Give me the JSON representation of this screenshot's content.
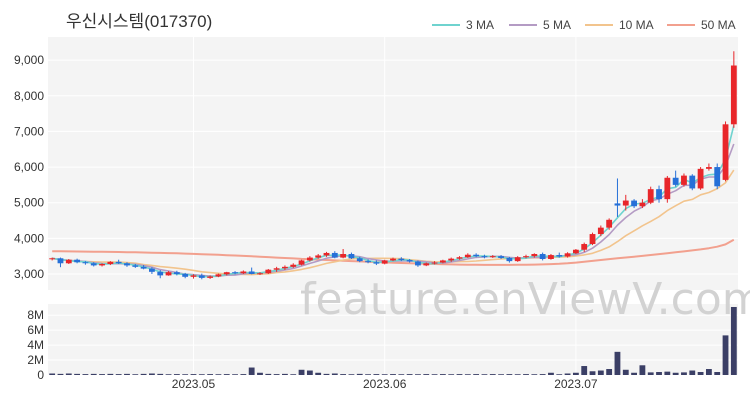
{
  "header": {
    "title": "우신시스템(017370)"
  },
  "watermark": "feature.enViewV.com",
  "colors": {
    "up": "#e8262a",
    "down": "#2670d8",
    "volume": "#3b3f66",
    "ma3": "#6fd3cf",
    "ma5": "#b49bc4",
    "ma10": "#f2c48d",
    "ma50": "#f2a08e",
    "panel": "#f4f4f4",
    "grid": "#ffffff"
  },
  "chart_data": [
    {
      "type": "candlestick",
      "title": "우신시스템(017370)",
      "y_ticks": [
        3000,
        4000,
        5000,
        6000,
        7000,
        8000,
        9000
      ],
      "y_tick_labels": [
        "3,000",
        "4,000",
        "5,000",
        "6,000",
        "7,000",
        "8,000",
        "9,000"
      ],
      "ylim": [
        2550,
        9650
      ],
      "x_tick_labels": [
        "2023.05",
        "2023.06",
        "2023.07"
      ],
      "legend": {
        "position": "top-right",
        "entries": [
          "3 MA",
          "5 MA",
          "10 MA",
          "50 MA"
        ]
      },
      "candles": [
        [
          3420,
          3460,
          3380,
          3440
        ],
        [
          3440,
          3460,
          3190,
          3300
        ],
        [
          3300,
          3420,
          3280,
          3400
        ],
        [
          3400,
          3430,
          3300,
          3330
        ],
        [
          3330,
          3360,
          3260,
          3300
        ],
        [
          3300,
          3330,
          3210,
          3240
        ],
        [
          3240,
          3300,
          3210,
          3280
        ],
        [
          3280,
          3360,
          3250,
          3340
        ],
        [
          3340,
          3400,
          3280,
          3300
        ],
        [
          3300,
          3330,
          3200,
          3240
        ],
        [
          3240,
          3280,
          3170,
          3200
        ],
        [
          3200,
          3250,
          3130,
          3150
        ],
        [
          3150,
          3190,
          3000,
          3060
        ],
        [
          3060,
          3110,
          2880,
          2960
        ],
        [
          2960,
          3080,
          2950,
          3050
        ],
        [
          3050,
          3090,
          2960,
          3000
        ],
        [
          3000,
          3030,
          2880,
          2920
        ],
        [
          2920,
          2990,
          2870,
          2960
        ],
        [
          2960,
          3010,
          2850,
          2890
        ],
        [
          2890,
          2960,
          2860,
          2930
        ],
        [
          2930,
          3010,
          2910,
          2990
        ],
        [
          2990,
          3060,
          2960,
          3050
        ],
        [
          3050,
          3080,
          2990,
          3020
        ],
        [
          3020,
          3100,
          3000,
          3070
        ],
        [
          3070,
          3180,
          2990,
          3000
        ],
        [
          3000,
          3050,
          2970,
          3020
        ],
        [
          3020,
          3140,
          3000,
          3120
        ],
        [
          3120,
          3200,
          3060,
          3160
        ],
        [
          3160,
          3240,
          3110,
          3200
        ],
        [
          3200,
          3300,
          3170,
          3260
        ],
        [
          3260,
          3400,
          3240,
          3380
        ],
        [
          3380,
          3500,
          3350,
          3460
        ],
        [
          3460,
          3560,
          3430,
          3520
        ],
        [
          3520,
          3620,
          3480,
          3590
        ],
        [
          3590,
          3640,
          3440,
          3460
        ],
        [
          3460,
          3700,
          3440,
          3560
        ],
        [
          3560,
          3600,
          3420,
          3440
        ],
        [
          3440,
          3480,
          3330,
          3360
        ],
        [
          3360,
          3410,
          3300,
          3330
        ],
        [
          3330,
          3380,
          3250,
          3290
        ],
        [
          3290,
          3400,
          3270,
          3380
        ],
        [
          3380,
          3460,
          3360,
          3430
        ],
        [
          3430,
          3470,
          3360,
          3390
        ],
        [
          3390,
          3420,
          3320,
          3350
        ],
        [
          3350,
          3380,
          3200,
          3240
        ],
        [
          3240,
          3320,
          3220,
          3300
        ],
        [
          3300,
          3360,
          3270,
          3320
        ],
        [
          3320,
          3400,
          3300,
          3380
        ],
        [
          3380,
          3460,
          3340,
          3430
        ],
        [
          3430,
          3500,
          3400,
          3470
        ],
        [
          3470,
          3580,
          3450,
          3540
        ],
        [
          3540,
          3580,
          3470,
          3500
        ],
        [
          3500,
          3540,
          3440,
          3470
        ],
        [
          3470,
          3530,
          3450,
          3500
        ],
        [
          3500,
          3530,
          3420,
          3450
        ],
        [
          3450,
          3480,
          3320,
          3360
        ],
        [
          3360,
          3500,
          3340,
          3470
        ],
        [
          3470,
          3540,
          3440,
          3500
        ],
        [
          3500,
          3580,
          3460,
          3560
        ],
        [
          3560,
          3600,
          3380,
          3420
        ],
        [
          3420,
          3560,
          3400,
          3530
        ],
        [
          3530,
          3600,
          3460,
          3490
        ],
        [
          3490,
          3610,
          3460,
          3580
        ],
        [
          3580,
          3700,
          3560,
          3680
        ],
        [
          3680,
          3880,
          3620,
          3840
        ],
        [
          3840,
          4160,
          3810,
          4120
        ],
        [
          4120,
          4360,
          4060,
          4300
        ],
        [
          4300,
          4560,
          4240,
          4520
        ],
        [
          4980,
          5680,
          4600,
          4920
        ],
        [
          4920,
          5220,
          4780,
          5060
        ],
        [
          5060,
          5100,
          4850,
          4900
        ],
        [
          4900,
          5100,
          4850,
          5000
        ],
        [
          5000,
          5450,
          4960,
          5380
        ],
        [
          5380,
          5480,
          5000,
          5100
        ],
        [
          5100,
          5750,
          5000,
          5700
        ],
        [
          5700,
          5900,
          5450,
          5500
        ],
        [
          5500,
          5820,
          5450,
          5760
        ],
        [
          5760,
          5800,
          5350,
          5400
        ],
        [
          5400,
          6000,
          5360,
          5950
        ],
        [
          5950,
          6100,
          5900,
          6000
        ],
        [
          6000,
          6100,
          5380,
          5460
        ],
        [
          5640,
          7280,
          5600,
          7200
        ],
        [
          7200,
          9250,
          7100,
          8850
        ]
      ],
      "ma3": [
        3440,
        3400,
        3380,
        3343,
        3343,
        3290,
        3273,
        3287,
        3307,
        3280,
        3247,
        3197,
        3137,
        3057,
        3023,
        3003,
        2990,
        2960,
        2923,
        2927,
        2937,
        2990,
        3020,
        3047,
        3030,
        3030,
        3070,
        3100,
        3160,
        3207,
        3280,
        3367,
        3453,
        3523,
        3523,
        3537,
        3487,
        3453,
        3377,
        3327,
        3333,
        3367,
        3400,
        3390,
        3327,
        3297,
        3287,
        3333,
        3377,
        3423,
        3480,
        3503,
        3503,
        3490,
        3473,
        3427,
        3427,
        3443,
        3510,
        3493,
        3503,
        3480,
        3533,
        3583,
        3700,
        3880,
        4087,
        4313,
        4580,
        4833,
        4960,
        4987,
        5093,
        5160,
        5393,
        5433,
        5653,
        5553,
        5703,
        5783,
        5803,
        6220,
        7170
      ],
      "ma5": [
        3440,
        3400,
        3380,
        3368,
        3354,
        3314,
        3290,
        3286,
        3292,
        3277,
        3272,
        3238,
        3190,
        3122,
        3082,
        3042,
        2997,
        2978,
        2960,
        2940,
        2940,
        2964,
        2968,
        3006,
        3026,
        3030,
        3046,
        3074,
        3110,
        3152,
        3224,
        3296,
        3364,
        3442,
        3482,
        3516,
        3508,
        3484,
        3430,
        3396,
        3360,
        3358,
        3366,
        3368,
        3359,
        3342,
        3313,
        3306,
        3338,
        3378,
        3422,
        3464,
        3482,
        3496,
        3492,
        3466,
        3449,
        3455,
        3464,
        3464,
        3486,
        3500,
        3518,
        3542,
        3604,
        3724,
        3898,
        4104,
        4372,
        4584,
        4760,
        4880,
        5052,
        5104,
        5236,
        5336,
        5488,
        5492,
        5662,
        5722,
        5722,
        6026,
        6648
      ],
      "ma10": [
        3440,
        3400,
        3380,
        3368,
        3354,
        3340,
        3334,
        3335,
        3332,
        3322,
        3302,
        3264,
        3239,
        3207,
        3187,
        3161,
        3135,
        3101,
        3061,
        3039,
        3019,
        3000,
        2992,
        2985,
        2983,
        2997,
        3008,
        3037,
        3058,
        3089,
        3128,
        3177,
        3236,
        3296,
        3342,
        3389,
        3419,
        3439,
        3437,
        3439,
        3439,
        3436,
        3427,
        3399,
        3381,
        3355,
        3341,
        3337,
        3338,
        3346,
        3350,
        3363,
        3384,
        3403,
        3422,
        3432,
        3440,
        3445,
        3454,
        3455,
        3467,
        3474,
        3482,
        3503,
        3534,
        3579,
        3662,
        3760,
        3909,
        4074,
        4212,
        4352,
        4475,
        4606,
        4778,
        4916,
        5041,
        5092,
        5223,
        5286,
        5397,
        5559,
        5916
      ],
      "ma50": [
        3640,
        3637,
        3634,
        3631,
        3628,
        3625,
        3622,
        3619,
        3616,
        3612,
        3608,
        3603,
        3598,
        3592,
        3586,
        3579,
        3572,
        3564,
        3556,
        3547,
        3538,
        3528,
        3518,
        3507,
        3496,
        3484,
        3472,
        3460,
        3448,
        3436,
        3424,
        3414,
        3403,
        3392,
        3381,
        3371,
        3362,
        3352,
        3343,
        3334,
        3325,
        3317,
        3309,
        3302,
        3294,
        3287,
        3281,
        3275,
        3269,
        3264,
        3259,
        3256,
        3254,
        3253,
        3253,
        3254,
        3256,
        3259,
        3263,
        3268,
        3276,
        3286,
        3300,
        3318,
        3340,
        3366,
        3393,
        3418,
        3441,
        3462,
        3484,
        3507,
        3532,
        3557,
        3583,
        3608,
        3634,
        3660,
        3690,
        3724,
        3765,
        3830,
        3960
      ]
    },
    {
      "type": "bar",
      "series": [
        {
          "name": "volume",
          "values": [
            0.2,
            0.15,
            0.2,
            0.15,
            0.12,
            0.15,
            0.12,
            0.15,
            0.12,
            0.15,
            0.1,
            0.15,
            0.2,
            0.15,
            0.1,
            0.12,
            0.1,
            0.12,
            0.1,
            0.12,
            0.1,
            0.12,
            0.1,
            0.12,
            1.0,
            0.3,
            0.15,
            0.12,
            0.15,
            0.1,
            0.7,
            0.6,
            0.3,
            0.15,
            0.2,
            0.12,
            0.1,
            0.15,
            0.1,
            0.12,
            0.1,
            0.12,
            0.1,
            0.12,
            0.1,
            0.12,
            0.1,
            0.12,
            0.1,
            0.12,
            0.1,
            0.12,
            0.1,
            0.12,
            0.1,
            0.12,
            0.1,
            0.12,
            0.1,
            0.12,
            0.3,
            0.1,
            0.2,
            0.3,
            1.2,
            0.5,
            0.6,
            0.8,
            3.1,
            0.7,
            0.3,
            1.3,
            0.35,
            0.4,
            0.45,
            0.3,
            0.35,
            0.6,
            0.4,
            0.8,
            0.4,
            5.3,
            9.1
          ]
        }
      ],
      "y_ticks": [
        0,
        2000000,
        4000000,
        6000000,
        8000000
      ],
      "y_tick_labels": [
        "0",
        "2M",
        "4M",
        "6M",
        "8M"
      ],
      "ylim": [
        0,
        9500000
      ],
      "unit": "M"
    }
  ]
}
